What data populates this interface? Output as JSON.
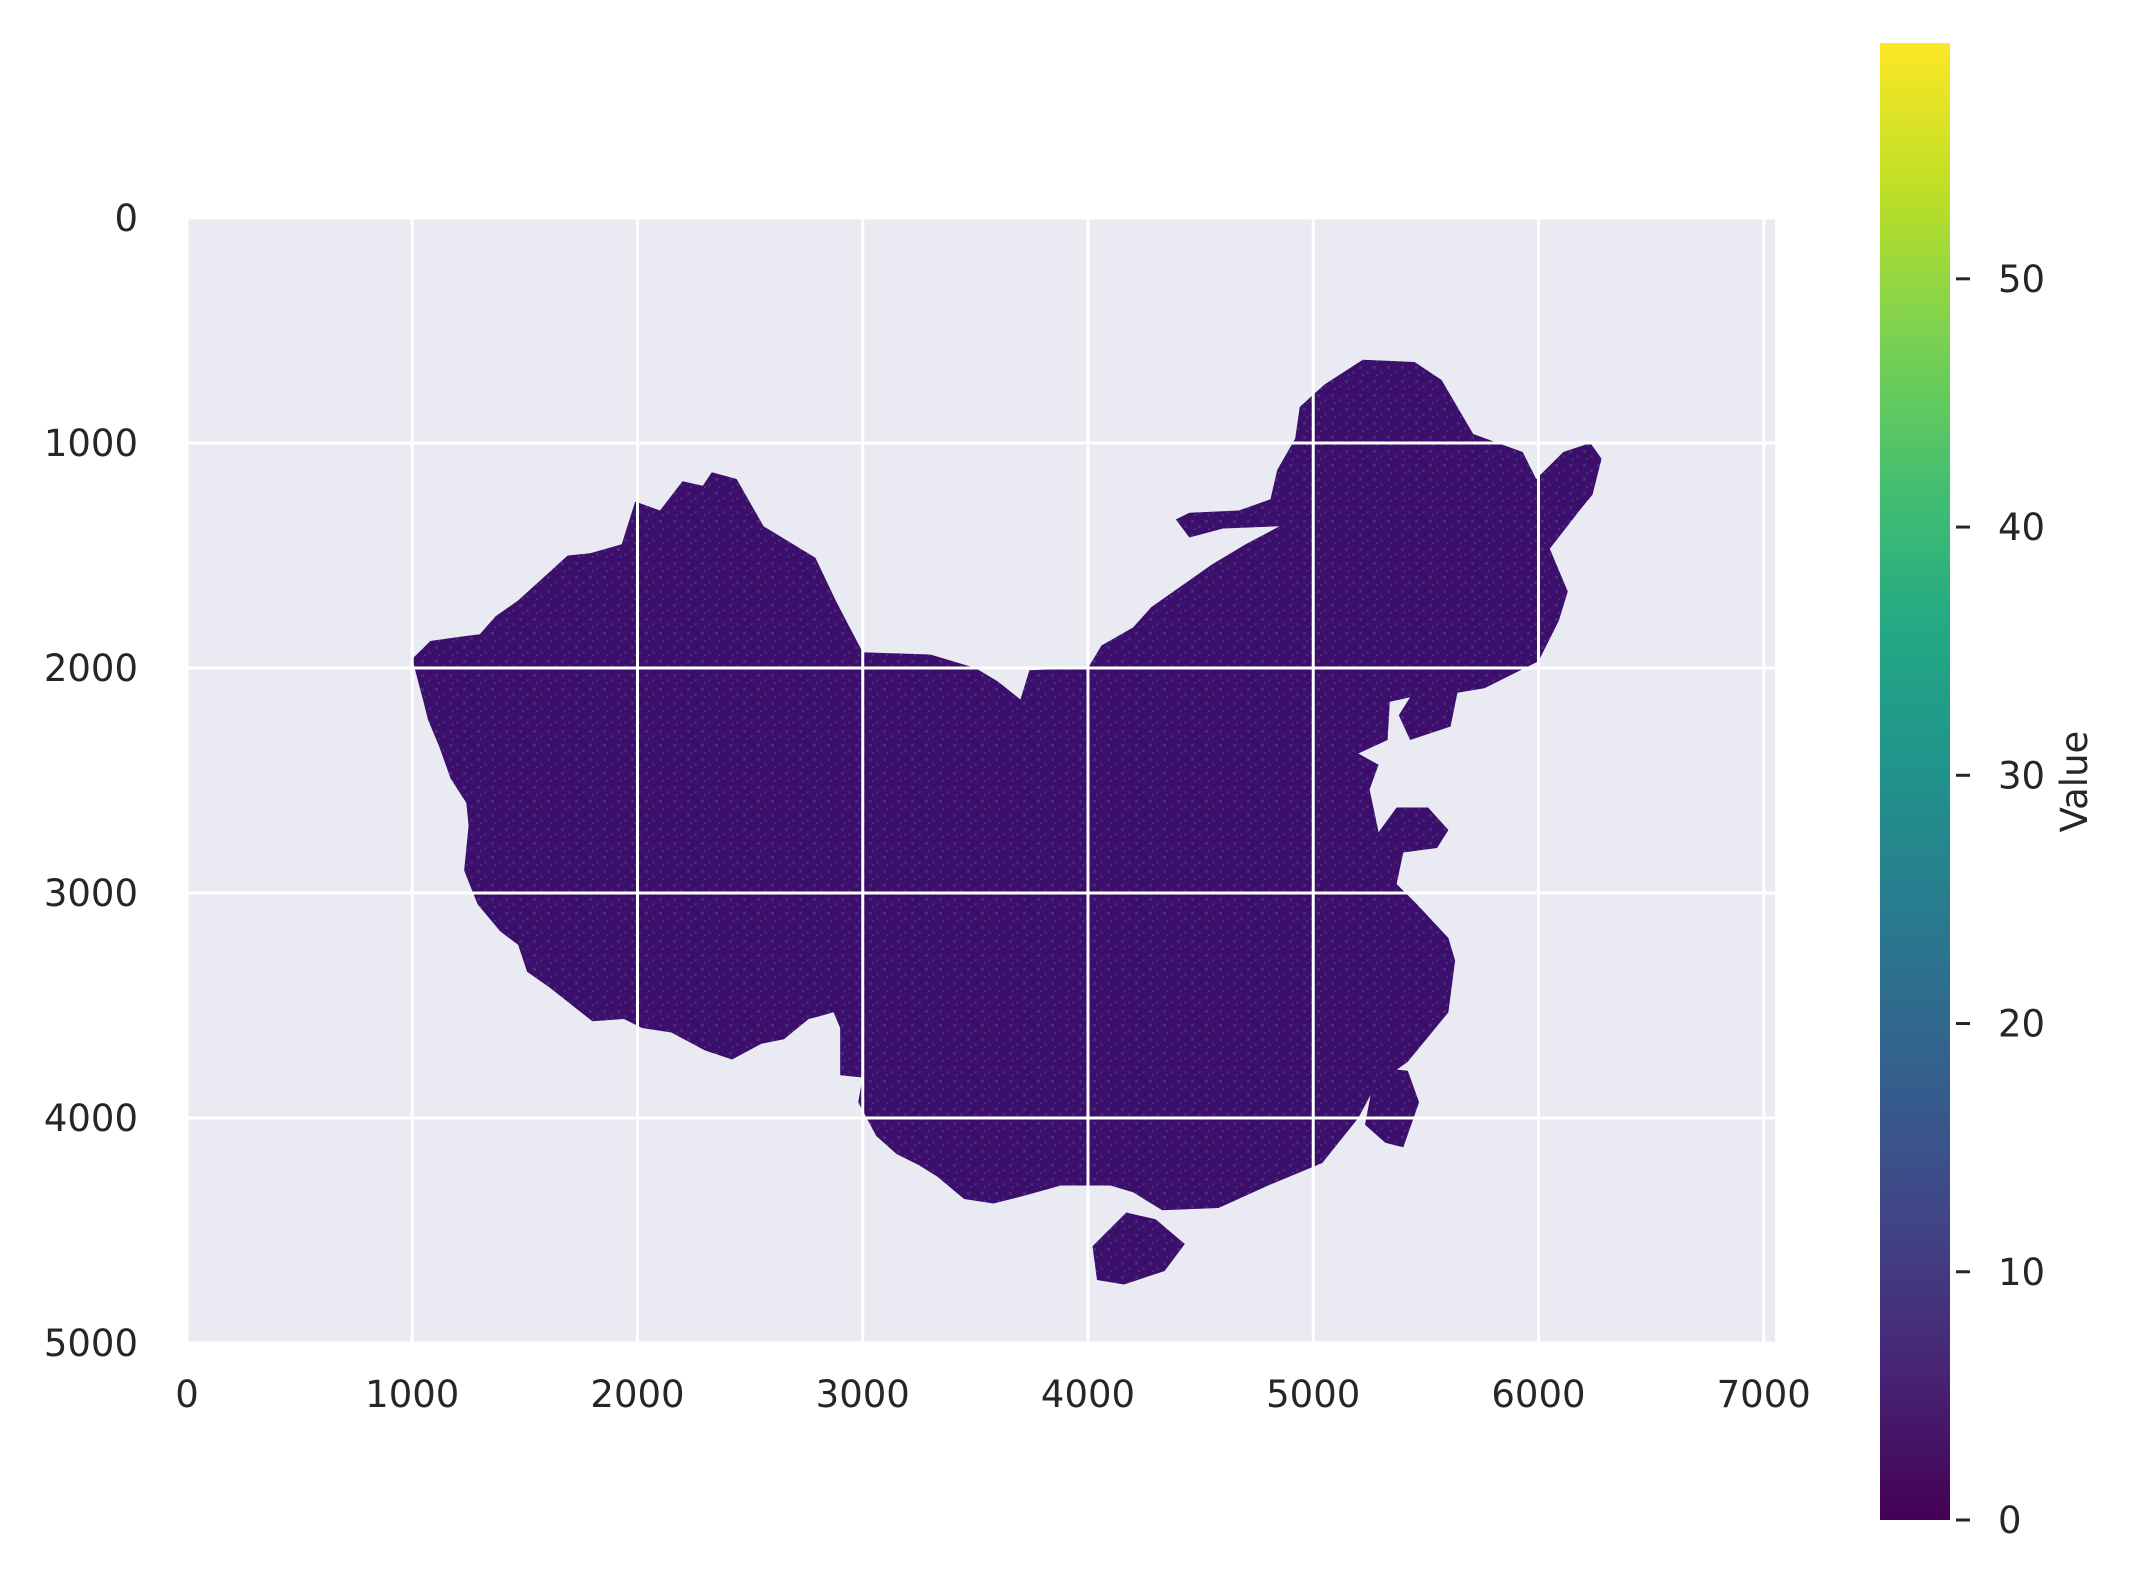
{
  "chart_data": {
    "type": "heatmap",
    "title": "",
    "xlabel": "",
    "ylabel": "",
    "xlim": [
      0,
      7050
    ],
    "ylim": [
      5000,
      0
    ],
    "x_ticks": [
      "0",
      "1000",
      "2000",
      "3000",
      "4000",
      "5000",
      "6000",
      "7000"
    ],
    "x_tick_values": [
      0,
      1000,
      2000,
      3000,
      4000,
      5000,
      6000,
      7000
    ],
    "y_ticks": [
      "0",
      "1000",
      "2000",
      "3000",
      "4000",
      "5000"
    ],
    "y_tick_values": [
      0,
      1000,
      2000,
      3000,
      4000,
      5000
    ],
    "grid": true,
    "background": "#eaeaf2",
    "colormap": "viridis",
    "data_description": "raster of values over the land area of China; mostly near 0, sparse higher values (10–25) in western and southwestern mountain regions",
    "colorbar": {
      "label": "Value",
      "vmin": 0,
      "vmax": 59.5,
      "ticks": [
        "0",
        "10",
        "20",
        "30",
        "40",
        "50"
      ],
      "tick_values": [
        0,
        10,
        20,
        30,
        40,
        50
      ]
    },
    "mainland_outline": [
      [
        1000,
        1960
      ],
      [
        1080,
        1880
      ],
      [
        1220,
        1860
      ],
      [
        1300,
        1850
      ],
      [
        1370,
        1770
      ],
      [
        1470,
        1700
      ],
      [
        1690,
        1500
      ],
      [
        1790,
        1490
      ],
      [
        1930,
        1450
      ],
      [
        1990,
        1260
      ],
      [
        2100,
        1300
      ],
      [
        2200,
        1170
      ],
      [
        2290,
        1190
      ],
      [
        2330,
        1130
      ],
      [
        2440,
        1160
      ],
      [
        2560,
        1370
      ],
      [
        2790,
        1510
      ],
      [
        2880,
        1700
      ],
      [
        3000,
        1930
      ],
      [
        3300,
        1940
      ],
      [
        3500,
        2000
      ],
      [
        3600,
        2060
      ],
      [
        3700,
        2140
      ],
      [
        3740,
        2010
      ],
      [
        4000,
        2000
      ],
      [
        4060,
        1900
      ],
      [
        4200,
        1820
      ],
      [
        4280,
        1730
      ],
      [
        4550,
        1540
      ],
      [
        4700,
        1450
      ],
      [
        4850,
        1370
      ],
      [
        4600,
        1380
      ],
      [
        4450,
        1420
      ],
      [
        4390,
        1340
      ],
      [
        4450,
        1310
      ],
      [
        4670,
        1300
      ],
      [
        4810,
        1250
      ],
      [
        4840,
        1120
      ],
      [
        4920,
        980
      ],
      [
        4940,
        840
      ],
      [
        5050,
        740
      ],
      [
        5220,
        630
      ],
      [
        5450,
        640
      ],
      [
        5570,
        720
      ],
      [
        5710,
        960
      ],
      [
        5930,
        1040
      ],
      [
        5990,
        1160
      ],
      [
        6110,
        1040
      ],
      [
        6230,
        1000
      ],
      [
        6280,
        1070
      ],
      [
        6240,
        1230
      ],
      [
        6190,
        1290
      ],
      [
        6050,
        1470
      ],
      [
        6130,
        1660
      ],
      [
        6090,
        1790
      ],
      [
        6000,
        1970
      ],
      [
        5760,
        2090
      ],
      [
        5640,
        2110
      ],
      [
        5610,
        2260
      ],
      [
        5430,
        2320
      ],
      [
        5380,
        2210
      ],
      [
        5430,
        2130
      ],
      [
        5340,
        2150
      ],
      [
        5330,
        2320
      ],
      [
        5200,
        2380
      ],
      [
        5290,
        2430
      ],
      [
        5250,
        2540
      ],
      [
        5290,
        2730
      ],
      [
        5370,
        2620
      ],
      [
        5510,
        2620
      ],
      [
        5600,
        2720
      ],
      [
        5550,
        2800
      ],
      [
        5400,
        2820
      ],
      [
        5370,
        2960
      ],
      [
        5460,
        3050
      ],
      [
        5600,
        3200
      ],
      [
        5630,
        3300
      ],
      [
        5600,
        3530
      ],
      [
        5420,
        3750
      ],
      [
        5280,
        3850
      ],
      [
        5200,
        4000
      ],
      [
        5040,
        4200
      ],
      [
        4800,
        4300
      ],
      [
        4580,
        4400
      ],
      [
        4330,
        4410
      ],
      [
        4200,
        4330
      ],
      [
        4100,
        4300
      ],
      [
        3880,
        4300
      ],
      [
        3700,
        4350
      ],
      [
        3580,
        4380
      ],
      [
        3450,
        4360
      ],
      [
        3330,
        4260
      ],
      [
        3250,
        4210
      ],
      [
        3150,
        4160
      ],
      [
        3060,
        4080
      ],
      [
        2980,
        3930
      ],
      [
        3000,
        3820
      ],
      [
        2900,
        3810
      ],
      [
        2900,
        3600
      ],
      [
        2870,
        3530
      ],
      [
        2800,
        3550
      ],
      [
        2760,
        3560
      ],
      [
        2650,
        3650
      ],
      [
        2550,
        3670
      ],
      [
        2420,
        3740
      ],
      [
        2300,
        3700
      ],
      [
        2150,
        3620
      ],
      [
        2020,
        3600
      ],
      [
        1940,
        3560
      ],
      [
        1800,
        3570
      ],
      [
        1610,
        3420
      ],
      [
        1510,
        3350
      ],
      [
        1470,
        3230
      ],
      [
        1390,
        3170
      ],
      [
        1290,
        3050
      ],
      [
        1230,
        2900
      ],
      [
        1250,
        2700
      ],
      [
        1240,
        2600
      ],
      [
        1170,
        2490
      ],
      [
        1120,
        2350
      ],
      [
        1070,
        2230
      ],
      [
        1050,
        2150
      ]
    ],
    "hainan_outline": [
      [
        4020,
        4570
      ],
      [
        4170,
        4420
      ],
      [
        4300,
        4450
      ],
      [
        4430,
        4560
      ],
      [
        4340,
        4680
      ],
      [
        4160,
        4740
      ],
      [
        4040,
        4720
      ]
    ],
    "taiwan_outline": [
      [
        5260,
        3870
      ],
      [
        5330,
        3780
      ],
      [
        5420,
        3790
      ],
      [
        5470,
        3930
      ],
      [
        5400,
        4130
      ],
      [
        5320,
        4110
      ],
      [
        5230,
        4030
      ]
    ]
  }
}
